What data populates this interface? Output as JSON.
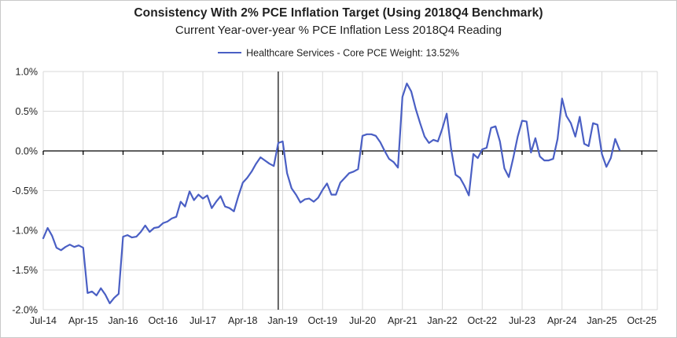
{
  "title": "Consistency With 2% PCE Inflation Target (Using 2018Q4 Benchmark)",
  "subtitle": "Current Year-over-year % PCE Inflation Less 2018Q4 Reading",
  "legend": {
    "label": "Healthcare Services - Core PCE Weight: 13.52%"
  },
  "colors": {
    "line": "#4a5fc4",
    "grid": "#d9d9d9",
    "axis": "#000000",
    "benchmark": "#000000",
    "text": "#1f1f1f",
    "frame": "#c9c9c9"
  },
  "chart_data": {
    "type": "line",
    "title": "Consistency With 2% PCE Inflation Target (Using 2018Q4 Benchmark)",
    "subtitle": "Current Year-over-year % PCE Inflation Less 2018Q4 Reading",
    "series_name": "Healthcare Services - Core PCE Weight: 13.52%",
    "frequency": "monthly",
    "start_month": "Jul-2014",
    "end_month": "May-2025",
    "unit": "percent",
    "ylim": [
      -2.0,
      1.0
    ],
    "grid": true,
    "legend_position": "top",
    "y_ticks": [
      "1.0%",
      "0.5%",
      "0.0%",
      "-0.5%",
      "-1.0%",
      "-1.5%",
      "-2.0%"
    ],
    "y_tick_values": [
      1.0,
      0.5,
      0.0,
      -0.5,
      -1.0,
      -1.5,
      -2.0
    ],
    "x_ticks": [
      "Jul-14",
      "Apr-15",
      "Jan-16",
      "Oct-16",
      "Jul-17",
      "Apr-18",
      "Jan-19",
      "Oct-19",
      "Jul-20",
      "Apr-21",
      "Jan-22",
      "Oct-22",
      "Jul-23",
      "Apr-24",
      "Jan-25",
      "Oct-25"
    ],
    "x_tick_month_index": [
      0,
      9,
      18,
      27,
      36,
      45,
      54,
      63,
      72,
      81,
      90,
      99,
      108,
      117,
      126,
      135
    ],
    "benchmark_vline_month": "Dec-2018",
    "benchmark_vline_month_index": 53,
    "values": [
      -1.1,
      -0.97,
      -1.07,
      -1.22,
      -1.25,
      -1.21,
      -1.18,
      -1.21,
      -1.19,
      -1.22,
      -1.79,
      -1.77,
      -1.82,
      -1.73,
      -1.81,
      -1.92,
      -1.85,
      -1.8,
      -1.08,
      -1.06,
      -1.09,
      -1.08,
      -1.02,
      -0.94,
      -1.02,
      -0.97,
      -0.96,
      -0.91,
      -0.89,
      -0.85,
      -0.83,
      -0.64,
      -0.7,
      -0.51,
      -0.62,
      -0.55,
      -0.6,
      -0.56,
      -0.72,
      -0.64,
      -0.57,
      -0.7,
      -0.72,
      -0.76,
      -0.57,
      -0.4,
      -0.34,
      -0.26,
      -0.16,
      -0.08,
      -0.12,
      -0.16,
      -0.19,
      0.1,
      0.12,
      -0.28,
      -0.47,
      -0.55,
      -0.65,
      -0.61,
      -0.6,
      -0.64,
      -0.59,
      -0.49,
      -0.41,
      -0.55,
      -0.55,
      -0.4,
      -0.34,
      -0.28,
      -0.26,
      -0.23,
      0.19,
      0.21,
      0.21,
      0.19,
      0.11,
      0.0,
      -0.1,
      -0.14,
      -0.21,
      0.68,
      0.85,
      0.75,
      0.53,
      0.35,
      0.18,
      0.1,
      0.14,
      0.12,
      0.28,
      0.47,
      0.02,
      -0.3,
      -0.34,
      -0.44,
      -0.56,
      -0.04,
      -0.09,
      0.02,
      0.04,
      0.29,
      0.31,
      0.12,
      -0.22,
      -0.33,
      -0.09,
      0.18,
      0.38,
      0.37,
      -0.02,
      0.16,
      -0.07,
      -0.12,
      -0.12,
      -0.1,
      0.15,
      0.66,
      0.44,
      0.35,
      0.18,
      0.43,
      0.09,
      0.06,
      0.35,
      0.33,
      -0.04,
      -0.2,
      -0.09,
      0.15,
      0.01
    ]
  }
}
